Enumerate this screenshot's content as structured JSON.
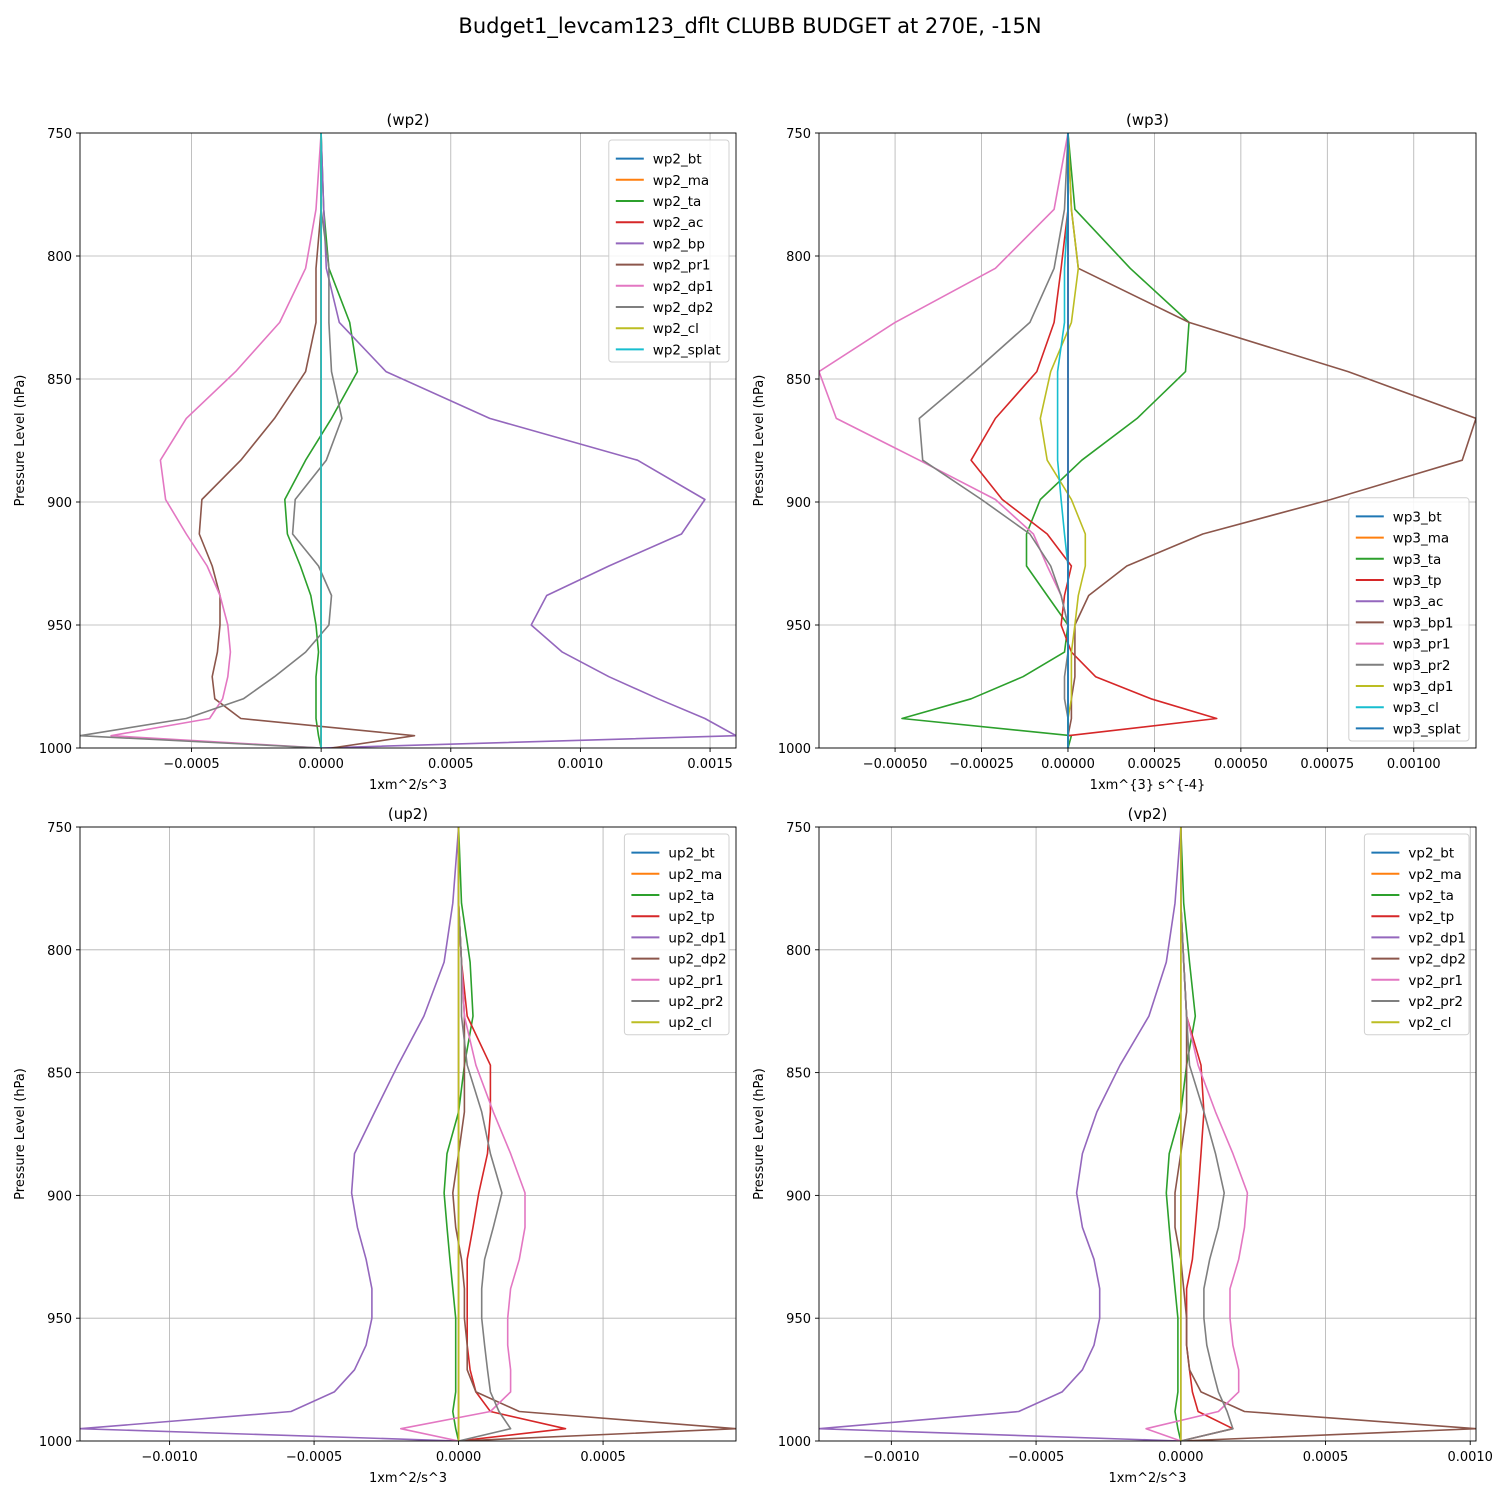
{
  "title": "Budget1_levcam123_dflt CLUBB BUDGET at 270E, -15N",
  "colors": [
    "#1f77b4",
    "#ff7f0e",
    "#2ca02c",
    "#d62728",
    "#9467bd",
    "#8c564b",
    "#e377c2",
    "#7f7f7f",
    "#bcbd22",
    "#17becf"
  ],
  "chart_data": [
    {
      "type": "line",
      "title": "(wp2)",
      "xlabel": "1xm^2/s^3",
      "ylabel": "Pressure Level (hPa)",
      "xlim": [
        -0.00093,
        0.0016
      ],
      "ylim": [
        1000,
        750
      ],
      "xticks": [
        -0.0005,
        0.0,
        0.0005,
        0.001,
        0.0015
      ],
      "xtick_labels": [
        "−0.0005",
        "0.0000",
        "0.0005",
        "0.0010",
        "0.0015"
      ],
      "yticks": [
        750,
        800,
        850,
        900,
        950,
        1000
      ],
      "grid": true,
      "legend_position": "top-right",
      "levels": [
        750,
        781,
        805,
        827,
        847,
        866,
        883,
        899,
        913,
        926,
        938,
        950,
        961,
        971,
        980,
        988,
        995,
        1000
      ],
      "series": [
        {
          "name": "wp2_bt",
          "x": [
            0,
            0,
            0,
            0,
            0,
            0,
            0,
            0,
            0,
            0,
            0,
            0,
            0,
            0,
            0,
            0,
            0,
            0
          ]
        },
        {
          "name": "wp2_ma",
          "x": [
            0,
            0,
            0,
            0,
            0,
            0,
            0,
            0,
            0,
            0,
            0,
            0,
            0,
            0,
            0,
            0,
            0,
            0
          ]
        },
        {
          "name": "wp2_ta",
          "x": [
            0,
            1e-05,
            3e-05,
            0.00011,
            0.00014,
            4e-05,
            -6e-05,
            -0.00014,
            -0.00013,
            -8e-05,
            -4e-05,
            -2e-05,
            -1e-05,
            -2e-05,
            -2e-05,
            -2e-05,
            -1e-05,
            0
          ]
        },
        {
          "name": "wp2_ac",
          "x": [
            0,
            0,
            0,
            0,
            0,
            0,
            0,
            0,
            0,
            0,
            0,
            0,
            0,
            0,
            0,
            0,
            0,
            0
          ]
        },
        {
          "name": "wp2_bp",
          "x": [
            0,
            1e-05,
            2e-05,
            7e-05,
            0.00025,
            0.00065,
            0.00122,
            0.00148,
            0.00139,
            0.00111,
            0.00087,
            0.00081,
            0.00093,
            0.00111,
            0.0013,
            0.00148,
            0.0016,
            0
          ]
        },
        {
          "name": "wp2_pr1",
          "x": [
            0,
            0,
            -2e-05,
            -2e-05,
            -6e-05,
            -0.00018,
            -0.00031,
            -0.00046,
            -0.00047,
            -0.00042,
            -0.00039,
            -0.00039,
            -0.0004,
            -0.00042,
            -0.00041,
            -0.00031,
            0.00036,
            4e-05
          ]
        },
        {
          "name": "wp2_dp1",
          "x": [
            0,
            -2e-05,
            -6e-05,
            -0.00016,
            -0.00033,
            -0.00052,
            -0.00062,
            -0.0006,
            -0.00052,
            -0.00044,
            -0.00039,
            -0.00036,
            -0.00035,
            -0.00036,
            -0.00038,
            -0.00043,
            -0.00081,
            0
          ]
        },
        {
          "name": "wp2_dp2",
          "x": [
            0,
            0,
            3e-05,
            3e-05,
            4e-05,
            8e-05,
            2e-05,
            -0.0001,
            -0.00011,
            -1e-05,
            4e-05,
            3e-05,
            -6e-05,
            -0.00018,
            -0.0003,
            -0.00052,
            -0.00093,
            0
          ]
        },
        {
          "name": "wp2_cl",
          "x": [
            0,
            0,
            0,
            0,
            0,
            0,
            0,
            0,
            0,
            0,
            0,
            0,
            0,
            0,
            0,
            0,
            0,
            0
          ]
        },
        {
          "name": "wp2_splat",
          "x": [
            0,
            0,
            0,
            0,
            0,
            0,
            0,
            0,
            0,
            0,
            0,
            0,
            0,
            0,
            0,
            0,
            0,
            0
          ]
        }
      ]
    },
    {
      "type": "line",
      "title": "(wp3)",
      "xlabel": "1xm^{3} s^{-4}",
      "ylabel": "Pressure Level (hPa)",
      "xlim": [
        -0.00072,
        0.00118
      ],
      "ylim": [
        1000,
        750
      ],
      "xticks": [
        -0.0005,
        -0.00025,
        0.0,
        0.00025,
        0.0005,
        0.00075,
        0.001
      ],
      "xtick_labels": [
        "−0.00050",
        "−0.00025",
        "0.00000",
        "0.00025",
        "0.00050",
        "0.00075",
        "0.00100"
      ],
      "yticks": [
        750,
        800,
        850,
        900,
        950,
        1000
      ],
      "grid": true,
      "legend_position": "bottom-right",
      "levels": [
        750,
        781,
        805,
        827,
        847,
        866,
        883,
        899,
        913,
        926,
        938,
        950,
        961,
        971,
        980,
        988,
        995,
        1000
      ],
      "series": [
        {
          "name": "wp3_bt",
          "x": [
            0,
            0,
            0,
            0,
            0,
            0,
            0,
            0,
            0,
            0,
            0,
            0,
            0,
            0,
            0,
            0,
            0,
            0
          ]
        },
        {
          "name": "wp3_ma",
          "x": [
            0,
            0,
            0,
            0,
            0,
            0,
            0,
            0,
            0,
            0,
            0,
            0,
            0,
            0,
            0,
            0,
            0,
            0
          ]
        },
        {
          "name": "wp3_ta",
          "x": [
            0,
            2e-05,
            0.00018,
            0.00035,
            0.00034,
            0.0002,
            4e-05,
            -8e-05,
            -0.00012,
            -0.00012,
            -6e-05,
            0,
            -1e-05,
            -0.00013,
            -0.00028,
            -0.00048,
            1e-05,
            0
          ]
        },
        {
          "name": "wp3_tp",
          "x": [
            0,
            0,
            -2e-05,
            -4e-05,
            -9e-05,
            -0.00021,
            -0.00028,
            -0.00019,
            -6e-05,
            1e-05,
            -1e-05,
            -2e-05,
            1e-05,
            8e-05,
            0.00024,
            0.00043,
            0,
            0
          ]
        },
        {
          "name": "wp3_ac",
          "x": [
            0,
            0,
            0,
            0,
            0,
            0,
            0,
            0,
            0,
            0,
            0,
            0,
            0,
            0,
            0,
            0,
            0,
            0
          ]
        },
        {
          "name": "wp3_bp1",
          "x": [
            0,
            1e-05,
            3e-05,
            0.00035,
            0.00081,
            0.00118,
            0.00114,
            0.00076,
            0.00039,
            0.00017,
            6e-05,
            2e-05,
            2e-05,
            2e-05,
            1e-05,
            1e-05,
            0,
            0
          ]
        },
        {
          "name": "wp3_pr1",
          "x": [
            0,
            -4e-05,
            -0.00021,
            -0.0005,
            -0.00072,
            -0.00067,
            -0.00043,
            -0.00021,
            -0.0001,
            -6e-05,
            -2e-05,
            0,
            0,
            0,
            0,
            0,
            0,
            0
          ]
        },
        {
          "name": "wp3_pr2",
          "x": [
            0,
            -1e-05,
            -4e-05,
            -0.00011,
            -0.00027,
            -0.00043,
            -0.00042,
            -0.00025,
            -0.00011,
            -5e-05,
            -2e-05,
            0,
            0,
            -1e-05,
            -1e-05,
            0,
            0,
            0
          ]
        },
        {
          "name": "wp3_dp1",
          "x": [
            0,
            1e-05,
            3e-05,
            1e-05,
            -5e-05,
            -8e-05,
            -6e-05,
            1e-05,
            5e-05,
            5e-05,
            3e-05,
            2e-05,
            1e-05,
            1e-05,
            1e-05,
            0,
            0,
            0
          ]
        },
        {
          "name": "wp3_cl",
          "x": [
            0,
            0,
            -1e-05,
            -1e-05,
            -3e-05,
            -3e-05,
            -3e-05,
            -2e-05,
            -1e-05,
            0,
            0,
            0,
            0,
            0,
            0,
            0,
            0,
            0
          ]
        },
        {
          "name": "wp3_splat",
          "x": [
            0,
            0,
            0,
            0,
            0,
            0,
            0,
            0,
            0,
            0,
            0,
            0,
            0,
            0,
            0,
            0,
            0,
            0
          ]
        }
      ]
    },
    {
      "type": "line",
      "title": "(up2)",
      "xlabel": "1xm^2/s^3",
      "ylabel": "Pressure Level (hPa)",
      "xlim": [
        -0.00131,
        0.00096
      ],
      "ylim": [
        1000,
        750
      ],
      "xticks": [
        -0.001,
        -0.0005,
        0.0,
        0.0005
      ],
      "xtick_labels": [
        "−0.0010",
        "−0.0005",
        "0.0000",
        "0.0005"
      ],
      "yticks": [
        750,
        800,
        850,
        900,
        950,
        1000
      ],
      "grid": true,
      "legend_position": "top-right",
      "levels": [
        750,
        781,
        805,
        827,
        847,
        866,
        883,
        899,
        913,
        926,
        938,
        950,
        961,
        971,
        980,
        988,
        995,
        1000
      ],
      "series": [
        {
          "name": "up2_bt",
          "x": [
            0,
            0,
            0,
            0,
            0,
            0,
            0,
            0,
            0,
            0,
            0,
            0,
            0,
            0,
            0,
            0,
            0,
            0
          ]
        },
        {
          "name": "up2_ma",
          "x": [
            0,
            0,
            0,
            0,
            0,
            0,
            0,
            0,
            0,
            0,
            0,
            0,
            0,
            0,
            0,
            0,
            0,
            0
          ]
        },
        {
          "name": "up2_ta",
          "x": [
            0,
            1e-05,
            4e-05,
            5e-05,
            2e-05,
            0,
            -4e-05,
            -5e-05,
            -4e-05,
            -3e-05,
            -2e-05,
            -1e-05,
            -1e-05,
            -1e-05,
            -1e-05,
            -2e-05,
            -1e-05,
            0
          ]
        },
        {
          "name": "up2_tp",
          "x": [
            0,
            0,
            1e-05,
            3e-05,
            0.00011,
            0.00011,
            0.0001,
            7e-05,
            5e-05,
            3e-05,
            3e-05,
            3e-05,
            3e-05,
            4e-05,
            6e-05,
            0.00011,
            0.00037,
            0
          ]
        },
        {
          "name": "up2_dp1",
          "x": [
            0,
            -2e-05,
            -5e-05,
            -0.00012,
            -0.00021,
            -0.00029,
            -0.00036,
            -0.00037,
            -0.00035,
            -0.00032,
            -0.0003,
            -0.0003,
            -0.00032,
            -0.00036,
            -0.00043,
            -0.00058,
            -0.00131,
            0
          ]
        },
        {
          "name": "up2_dp2",
          "x": [
            0,
            0,
            1e-05,
            2e-05,
            2e-05,
            2e-05,
            0,
            -2e-05,
            -1e-05,
            1e-05,
            2e-05,
            2e-05,
            3e-05,
            3e-05,
            6e-05,
            0.00021,
            0.00096,
            0
          ]
        },
        {
          "name": "up2_pr1",
          "x": [
            0,
            0,
            1e-05,
            2e-05,
            6e-05,
            0.00012,
            0.00018,
            0.00023,
            0.00023,
            0.00021,
            0.00018,
            0.00017,
            0.00017,
            0.00018,
            0.00018,
            0.00011,
            -0.0002,
            0
          ]
        },
        {
          "name": "up2_pr2",
          "x": [
            0,
            0,
            1e-05,
            1e-05,
            3e-05,
            8e-05,
            0.00011,
            0.00015,
            0.00012,
            9e-05,
            8e-05,
            8e-05,
            9e-05,
            0.0001,
            0.00011,
            0.00014,
            0.00018,
            0
          ]
        },
        {
          "name": "up2_cl",
          "x": [
            0,
            0,
            0,
            0,
            0,
            0,
            0,
            0,
            0,
            0,
            0,
            0,
            0,
            0,
            0,
            0,
            0,
            0
          ]
        }
      ]
    },
    {
      "type": "line",
      "title": "(vp2)",
      "xlabel": "1xm^2/s^3",
      "ylabel": "Pressure Level (hPa)",
      "xlim": [
        -0.00125,
        0.00102
      ],
      "ylim": [
        1000,
        750
      ],
      "xticks": [
        -0.001,
        -0.0005,
        0.0,
        0.0005,
        0.001
      ],
      "xtick_labels": [
        "−0.0010",
        "−0.0005",
        "0.0000",
        "0.0005",
        "0.0010"
      ],
      "yticks": [
        750,
        800,
        850,
        900,
        950,
        1000
      ],
      "grid": true,
      "legend_position": "top-right",
      "levels": [
        750,
        781,
        805,
        827,
        847,
        866,
        883,
        899,
        913,
        926,
        938,
        950,
        961,
        971,
        980,
        988,
        995,
        1000
      ],
      "series": [
        {
          "name": "vp2_bt",
          "x": [
            0,
            0,
            0,
            0,
            0,
            0,
            0,
            0,
            0,
            0,
            0,
            0,
            0,
            0,
            0,
            0,
            0,
            0
          ]
        },
        {
          "name": "vp2_ma",
          "x": [
            0,
            0,
            0,
            0,
            0,
            0,
            0,
            0,
            0,
            0,
            0,
            0,
            0,
            0,
            0,
            0,
            0,
            0
          ]
        },
        {
          "name": "vp2_ta",
          "x": [
            0,
            1e-05,
            3e-05,
            5e-05,
            2e-05,
            0,
            -4e-05,
            -5e-05,
            -4e-05,
            -3e-05,
            -2e-05,
            -1e-05,
            -1e-05,
            -1e-05,
            -1e-05,
            -2e-05,
            -1e-05,
            0
          ]
        },
        {
          "name": "vp2_tp",
          "x": [
            0,
            0,
            1e-05,
            2e-05,
            7e-05,
            8e-05,
            7e-05,
            6e-05,
            5e-05,
            4e-05,
            2e-05,
            2e-05,
            2e-05,
            3e-05,
            4e-05,
            6e-05,
            0.00018,
            0
          ]
        },
        {
          "name": "vp2_dp1",
          "x": [
            0,
            -2e-05,
            -5e-05,
            -0.00011,
            -0.00021,
            -0.00029,
            -0.00034,
            -0.00036,
            -0.00034,
            -0.0003,
            -0.00028,
            -0.00028,
            -0.0003,
            -0.00034,
            -0.00041,
            -0.00056,
            -0.00125,
            0
          ]
        },
        {
          "name": "vp2_dp2",
          "x": [
            0,
            0,
            1e-05,
            2e-05,
            2e-05,
            2e-05,
            0,
            -2e-05,
            -2e-05,
            0,
            1e-05,
            2e-05,
            2e-05,
            3e-05,
            7e-05,
            0.00022,
            0.00102,
            0
          ]
        },
        {
          "name": "vp2_pr1",
          "x": [
            0,
            0,
            1e-05,
            2e-05,
            6e-05,
            0.00012,
            0.00018,
            0.00023,
            0.00022,
            0.0002,
            0.00017,
            0.00017,
            0.00018,
            0.0002,
            0.0002,
            0.00013,
            -0.00012,
            0
          ]
        },
        {
          "name": "vp2_pr2",
          "x": [
            0,
            0,
            1e-05,
            2e-05,
            3e-05,
            8e-05,
            0.00012,
            0.00015,
            0.00013,
            0.0001,
            8e-05,
            8e-05,
            9e-05,
            0.00011,
            0.00013,
            0.00016,
            0.00018,
            0
          ]
        },
        {
          "name": "vp2_cl",
          "x": [
            0,
            0,
            0,
            0,
            0,
            0,
            0,
            0,
            0,
            0,
            0,
            0,
            0,
            0,
            0,
            0,
            0,
            0
          ]
        }
      ]
    }
  ]
}
